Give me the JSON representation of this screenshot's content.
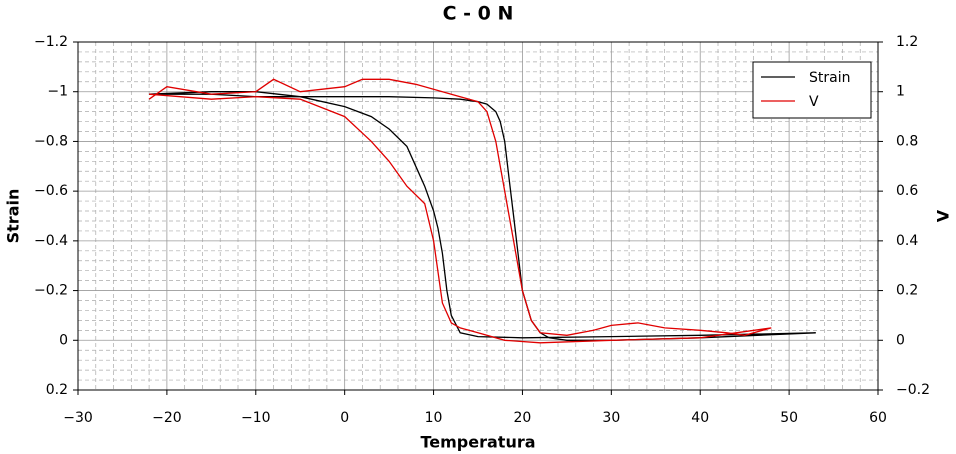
{
  "chart_data": {
    "type": "line",
    "title": "C - 0 N",
    "x_label": "Temperatura",
    "y_label": "Strain",
    "y2_label": "V",
    "xlim": [
      -30,
      60
    ],
    "xticks": [
      {
        "value": -30,
        "label": "−30"
      },
      {
        "value": -20,
        "label": "−20"
      },
      {
        "value": -10,
        "label": "−10"
      },
      0,
      10,
      20,
      30,
      40,
      50,
      60
    ],
    "ylim": [
      0.2,
      -1.2
    ],
    "yticks": [
      {
        "value": -1.2,
        "label": "−1.2"
      },
      {
        "value": -1,
        "label": "−1"
      },
      {
        "value": -0.8,
        "label": "−0.8"
      },
      {
        "value": -0.6,
        "label": "−0.6"
      },
      {
        "value": -0.4,
        "label": "−0.4"
      },
      {
        "value": -0.2,
        "label": "−0.2"
      },
      0,
      0.2
    ],
    "y2lim": [
      -0.2,
      1.2
    ],
    "y2ticks": [
      1.2,
      1,
      0.8,
      0.6,
      0.4,
      0.2,
      0,
      {
        "value": -0.2,
        "label": "−0.2"
      }
    ],
    "grid": true,
    "minor_grid": true,
    "legend": "upper right",
    "series": [
      {
        "name": "Strain",
        "color": "#000000",
        "x": [
          -22,
          -15,
          -10,
          -5,
          0,
          5,
          10,
          13,
          15,
          16,
          17,
          17.5,
          18,
          18.5,
          19,
          19.5,
          20,
          21,
          22,
          23,
          25,
          30,
          40,
          53,
          40,
          30,
          20,
          15,
          13,
          12,
          11.5,
          11,
          10.5,
          10,
          9,
          8,
          7,
          5,
          3,
          0,
          -5,
          -10,
          -15,
          -22
        ],
        "values": [
          -0.99,
          -0.99,
          -0.98,
          -0.98,
          -0.98,
          -0.98,
          -0.975,
          -0.97,
          -0.96,
          -0.95,
          -0.92,
          -0.88,
          -0.8,
          -0.65,
          -0.5,
          -0.35,
          -0.2,
          -0.08,
          -0.03,
          -0.01,
          0.0,
          0.0,
          -0.01,
          -0.03,
          -0.02,
          -0.015,
          -0.01,
          -0.015,
          -0.03,
          -0.1,
          -0.2,
          -0.35,
          -0.45,
          -0.52,
          -0.62,
          -0.7,
          -0.78,
          -0.85,
          -0.9,
          -0.94,
          -0.98,
          -1.0,
          -1.0,
          -0.99
        ]
      },
      {
        "name": "V",
        "color": "#e00000",
        "axis": "y2",
        "x": [
          -22,
          -20,
          -15,
          -10,
          -8,
          -5,
          0,
          2,
          5,
          8,
          12,
          15,
          16,
          17,
          18,
          19,
          20,
          21,
          22,
          25,
          28,
          30,
          33,
          36,
          40,
          43,
          45,
          48,
          40,
          30,
          22,
          18,
          15,
          13,
          12,
          11,
          10,
          9,
          7,
          5,
          3,
          0,
          -5,
          -10,
          -15,
          -22
        ],
        "values": [
          0.97,
          1.02,
          0.99,
          1.0,
          1.05,
          1.0,
          1.02,
          1.05,
          1.05,
          1.03,
          0.99,
          0.96,
          0.92,
          0.8,
          0.6,
          0.4,
          0.2,
          0.08,
          0.03,
          0.02,
          0.04,
          0.06,
          0.07,
          0.05,
          0.04,
          0.03,
          0.02,
          0.05,
          0.01,
          0.0,
          -0.01,
          0.0,
          0.03,
          0.05,
          0.07,
          0.15,
          0.4,
          0.55,
          0.62,
          0.72,
          0.8,
          0.9,
          0.97,
          0.98,
          0.97,
          0.99
        ]
      }
    ]
  }
}
